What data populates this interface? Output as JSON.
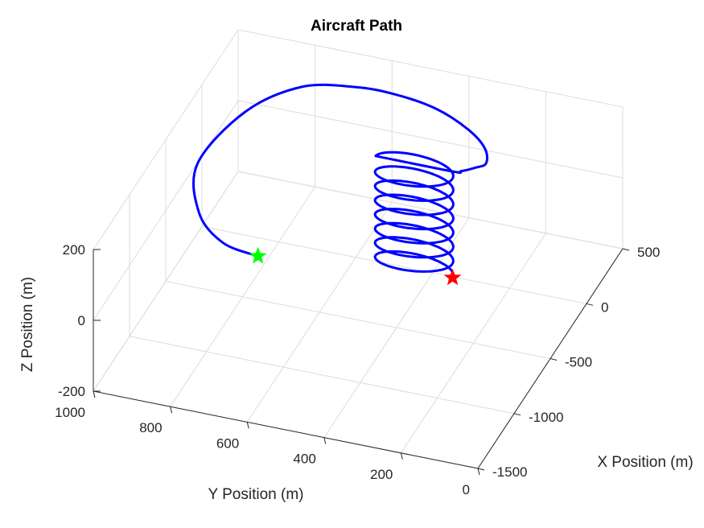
{
  "chart_data": {
    "type": "line3d",
    "title": "Aircraft Path",
    "xlabel": "X Position (m)",
    "ylabel": "Y Position (m)",
    "zlabel": "Z Position (m)",
    "xlim": [
      -1500,
      500
    ],
    "ylim": [
      0,
      1000
    ],
    "zlim": [
      -200,
      200
    ],
    "xticks": [
      500,
      0,
      -500,
      -1000,
      -1500
    ],
    "xtick_labels": [
      "500",
      "0",
      "-500",
      "-1000",
      "-1500"
    ],
    "yticks": [
      1000,
      800,
      600,
      400,
      200,
      0
    ],
    "ytick_labels": [
      "1000",
      "800",
      "600",
      "400",
      "200",
      "0"
    ],
    "zticks": [
      200,
      0,
      -200
    ],
    "ztick_labels": [
      "200",
      "0",
      "-200"
    ],
    "grid": true,
    "series": [
      {
        "color": "#0000ff",
        "helix": {
          "center_x": -150,
          "center_y": 420,
          "radius": 100,
          "z_start": -150,
          "z_end": 150,
          "turns": 7.5
        },
        "outbound": {
          "x": [
            -150,
            -140,
            -100,
            -60,
            30,
            120,
            200,
            220,
            200,
            100,
            -200,
            -700,
            -1100,
            -1300,
            -1350
          ],
          "y": [
            320,
            300,
            270,
            250,
            270,
            330,
            430,
            540,
            640,
            760,
            850,
            880,
            800,
            700,
            600
          ],
          "z": [
            150,
            152,
            156,
            160,
            170,
            182,
            195,
            205,
            210,
            215,
            218,
            220,
            222,
            222,
            222
          ]
        }
      }
    ],
    "markers": [
      {
        "name": "start",
        "x": -150,
        "y": 320,
        "z": -150,
        "color": "#ff0000",
        "symbol": "star"
      },
      {
        "name": "end",
        "x": -1350,
        "y": 600,
        "z": 222,
        "color": "#00ff00",
        "symbol": "star"
      }
    ]
  }
}
